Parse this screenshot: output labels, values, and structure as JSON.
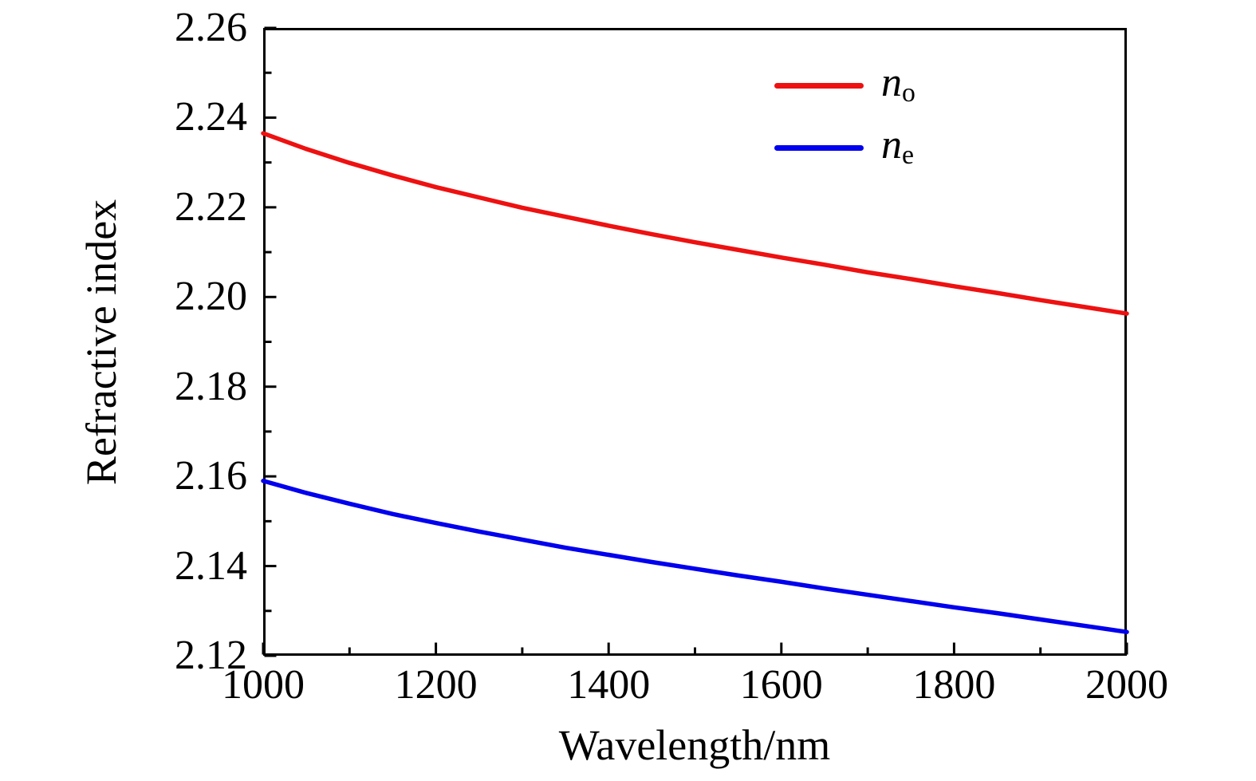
{
  "figure": {
    "background": "#ffffff",
    "axis_color": "#000000"
  },
  "chart_data": {
    "type": "line",
    "title": "",
    "xlabel": "Wavelength/nm",
    "ylabel": "Refractive index",
    "xlim": [
      1000,
      2000
    ],
    "ylim": [
      2.12,
      2.26
    ],
    "grid": false,
    "legend_position": "top-right-inside",
    "axis_color": "#000000",
    "x_major_ticks": [
      1000,
      1200,
      1400,
      1600,
      1800,
      2000
    ],
    "x_tick_labels": [
      "1000",
      "1200",
      "1400",
      "1600",
      "1800",
      "2000"
    ],
    "x_minor_step": 100,
    "y_tick_values": [
      2.12,
      2.14,
      2.16,
      2.18,
      2.2,
      2.22,
      2.24,
      2.26
    ],
    "y_tick_labels": [
      "2.12",
      "2.14",
      "2.16",
      "2.18",
      "2.20",
      "2.22",
      "2.24",
      "2.26"
    ],
    "y_minor_step": 0.01,
    "x": [
      1000,
      1050,
      1100,
      1150,
      1200,
      1250,
      1300,
      1350,
      1400,
      1450,
      1500,
      1550,
      1600,
      1650,
      1700,
      1750,
      1800,
      1850,
      1900,
      1950,
      2000
    ],
    "series": [
      {
        "name": "n_o",
        "symbol": "n",
        "subscript": "o",
        "color": "#ee1111",
        "values": [
          2.2365,
          2.233,
          2.2299,
          2.2271,
          2.2245,
          2.2222,
          2.2199,
          2.2179,
          2.2159,
          2.214,
          2.2122,
          2.2105,
          2.2088,
          2.2072,
          2.2055,
          2.204,
          2.2024,
          2.2009,
          2.1993,
          2.1978,
          2.1963
        ]
      },
      {
        "name": "n_e",
        "symbol": "n",
        "subscript": "e",
        "color": "#0000ee",
        "values": [
          2.159,
          2.1563,
          2.1539,
          2.1516,
          2.1496,
          2.1477,
          2.1459,
          2.1441,
          2.1425,
          2.1409,
          2.1394,
          2.1379,
          2.1365,
          2.135,
          2.1336,
          2.1322,
          2.1308,
          2.1295,
          2.1281,
          2.1267,
          2.1253
        ]
      }
    ]
  }
}
